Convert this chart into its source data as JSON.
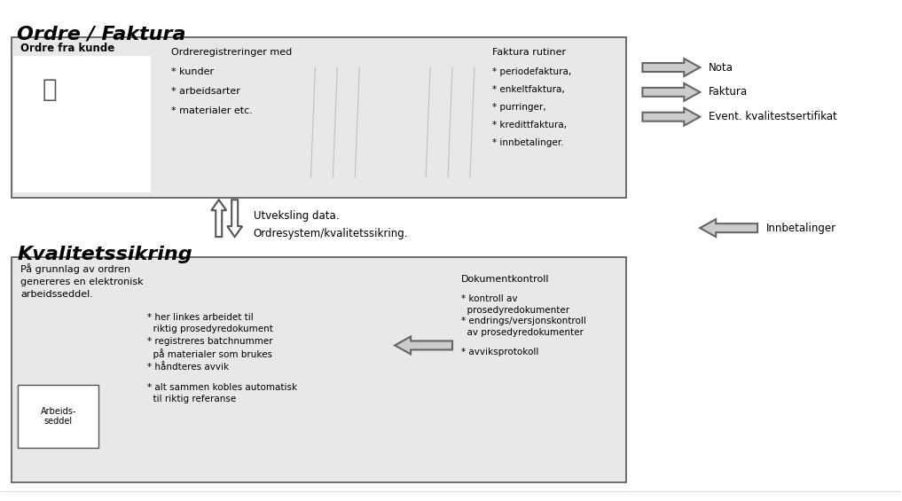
{
  "title_ordre": "Ordre / Faktura",
  "title_kvalitet": "Kvalitetssikring",
  "bg_color": "#ffffff",
  "box_fill": "#e8e8e8",
  "box_edge": "#555555",
  "arrow_color": "#888888",
  "text_color": "#000000",
  "ordre_box": {
    "label_top_left": "Ordre fra kunde",
    "order_reg_title": "Ordreregistreringer med",
    "order_reg_items": [
      "* kunder",
      "* arbeidsarter",
      "* materialer etc."
    ],
    "faktura_title": "Faktura rutiner",
    "faktura_items": [
      "* periodefaktura,",
      "* enkeltfaktura,",
      "* purringer,",
      "* kredittfaktura,",
      "* innbetalinger."
    ],
    "arrows_right": [
      "Nota",
      "Faktura",
      "Event. kvalitestsertifikat"
    ]
  },
  "middle_section": {
    "arrows_updown": true,
    "text_line1": "Utveksling data.",
    "text_line2": "Ordresystem/kvalitetssikring.",
    "arrow_left_label": "Innbetalinger"
  },
  "kvalitet_box": {
    "intro_text": "På grunnlag av ordren\ngenereres en elektronisk\narbeidsseddel.",
    "computer_label": "Arbeids-\nseddel",
    "bullet_items": [
      "* her linkes arbeidet til\n  riktig prosedyredokument",
      "* registreres batchnummer\n  på materialer som brukes",
      "* håndteres avvik",
      "* alt sammen kobles automatisk\n  til riktig referanse"
    ],
    "dok_title": "Dokumentkontroll",
    "dok_items": [
      "* kontroll av\n  prosedyredokumenter",
      "* endrings/versjonskontroll\n  av prosedyredokumenter",
      "* avviksprotokoll"
    ]
  }
}
